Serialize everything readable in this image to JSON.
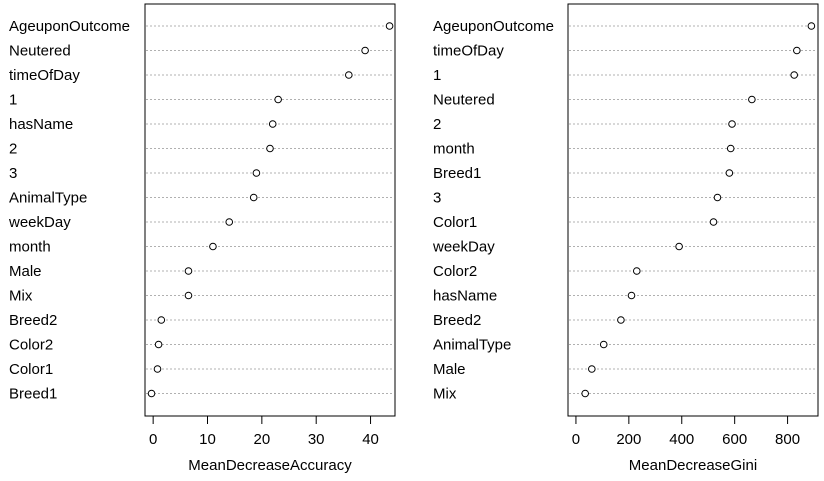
{
  "chart_data": [
    {
      "type": "scatter",
      "subtype": "dotchart",
      "title": "",
      "xlabel": "MeanDecreaseAccuracy",
      "ylabel": "",
      "xlim": [
        -1.5,
        44.5
      ],
      "xticks": [
        0,
        10,
        20,
        30,
        40
      ],
      "grid": "dotted horizontal",
      "categories": [
        "AgeuponOutcome",
        "Neutered",
        "timeOfDay",
        "1",
        "hasName",
        "2",
        "3",
        "AnimalType",
        "weekDay",
        "month",
        "Male",
        "Mix",
        "Breed2",
        "Color2",
        "Color1",
        "Breed1"
      ],
      "values": [
        43.5,
        39.0,
        36.0,
        23.0,
        22.0,
        21.5,
        19.0,
        18.5,
        14.0,
        11.0,
        6.5,
        6.5,
        1.5,
        1.0,
        0.8,
        -0.3
      ]
    },
    {
      "type": "scatter",
      "subtype": "dotchart",
      "title": "",
      "xlabel": "MeanDecreaseGini",
      "ylabel": "",
      "xlim": [
        -30,
        915
      ],
      "xticks": [
        0,
        200,
        400,
        600,
        800
      ],
      "grid": "dotted horizontal",
      "categories": [
        "AgeuponOutcome",
        "timeOfDay",
        "1",
        "Neutered",
        "2",
        "month",
        "Breed1",
        "3",
        "Color1",
        "weekDay",
        "Color2",
        "hasName",
        "Breed2",
        "AnimalType",
        "Male",
        "Mix"
      ],
      "values": [
        890,
        835,
        825,
        665,
        590,
        585,
        580,
        535,
        520,
        390,
        230,
        210,
        170,
        105,
        60,
        35
      ]
    }
  ]
}
